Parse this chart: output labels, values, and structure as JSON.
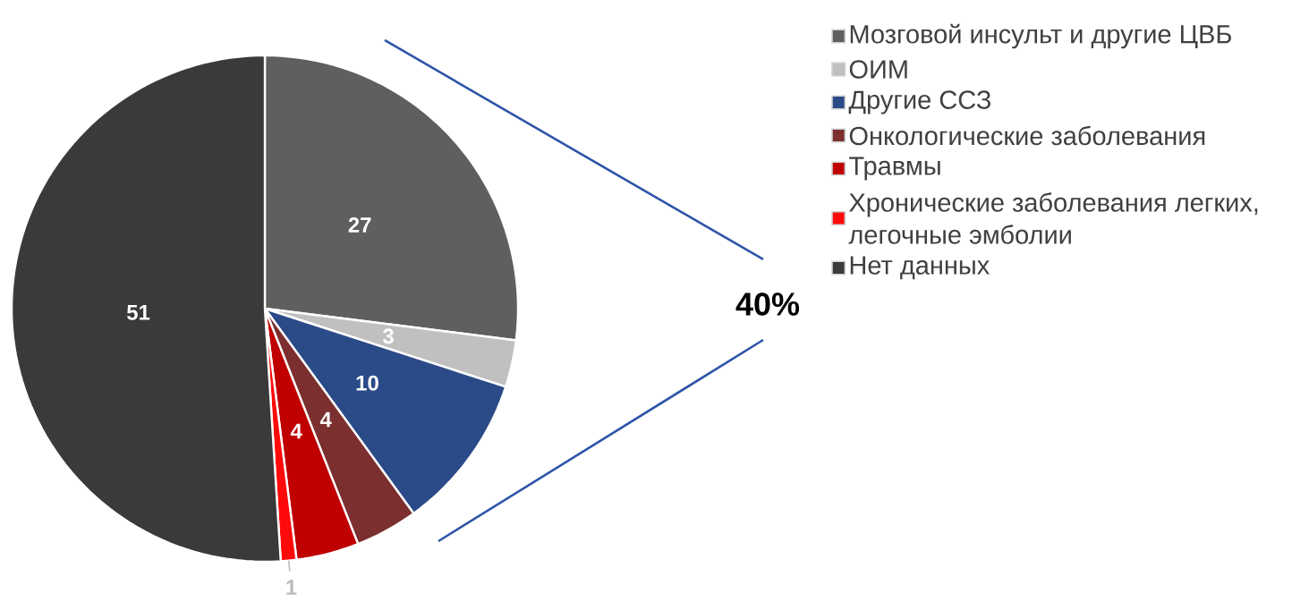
{
  "chart_data": {
    "type": "pie",
    "categories": [
      "Мозговой инсульт и другие ЦВБ",
      "ОИМ",
      "Другие ССЗ",
      "Онкологические заболевания",
      "Травмы",
      "Хронические заболевания легких, легочные эмболии",
      "Нет данных"
    ],
    "values": [
      27,
      3,
      10,
      4,
      4,
      1,
      51
    ],
    "colors": [
      "#5f5f5f",
      "#c0c0c0",
      "#2b4a88",
      "#7b2f2f",
      "#c00000",
      "#ff0a0a",
      "#3a3a3a"
    ],
    "data_labels": true,
    "legend": "top right",
    "annotations": [
      "40%"
    ]
  }
}
